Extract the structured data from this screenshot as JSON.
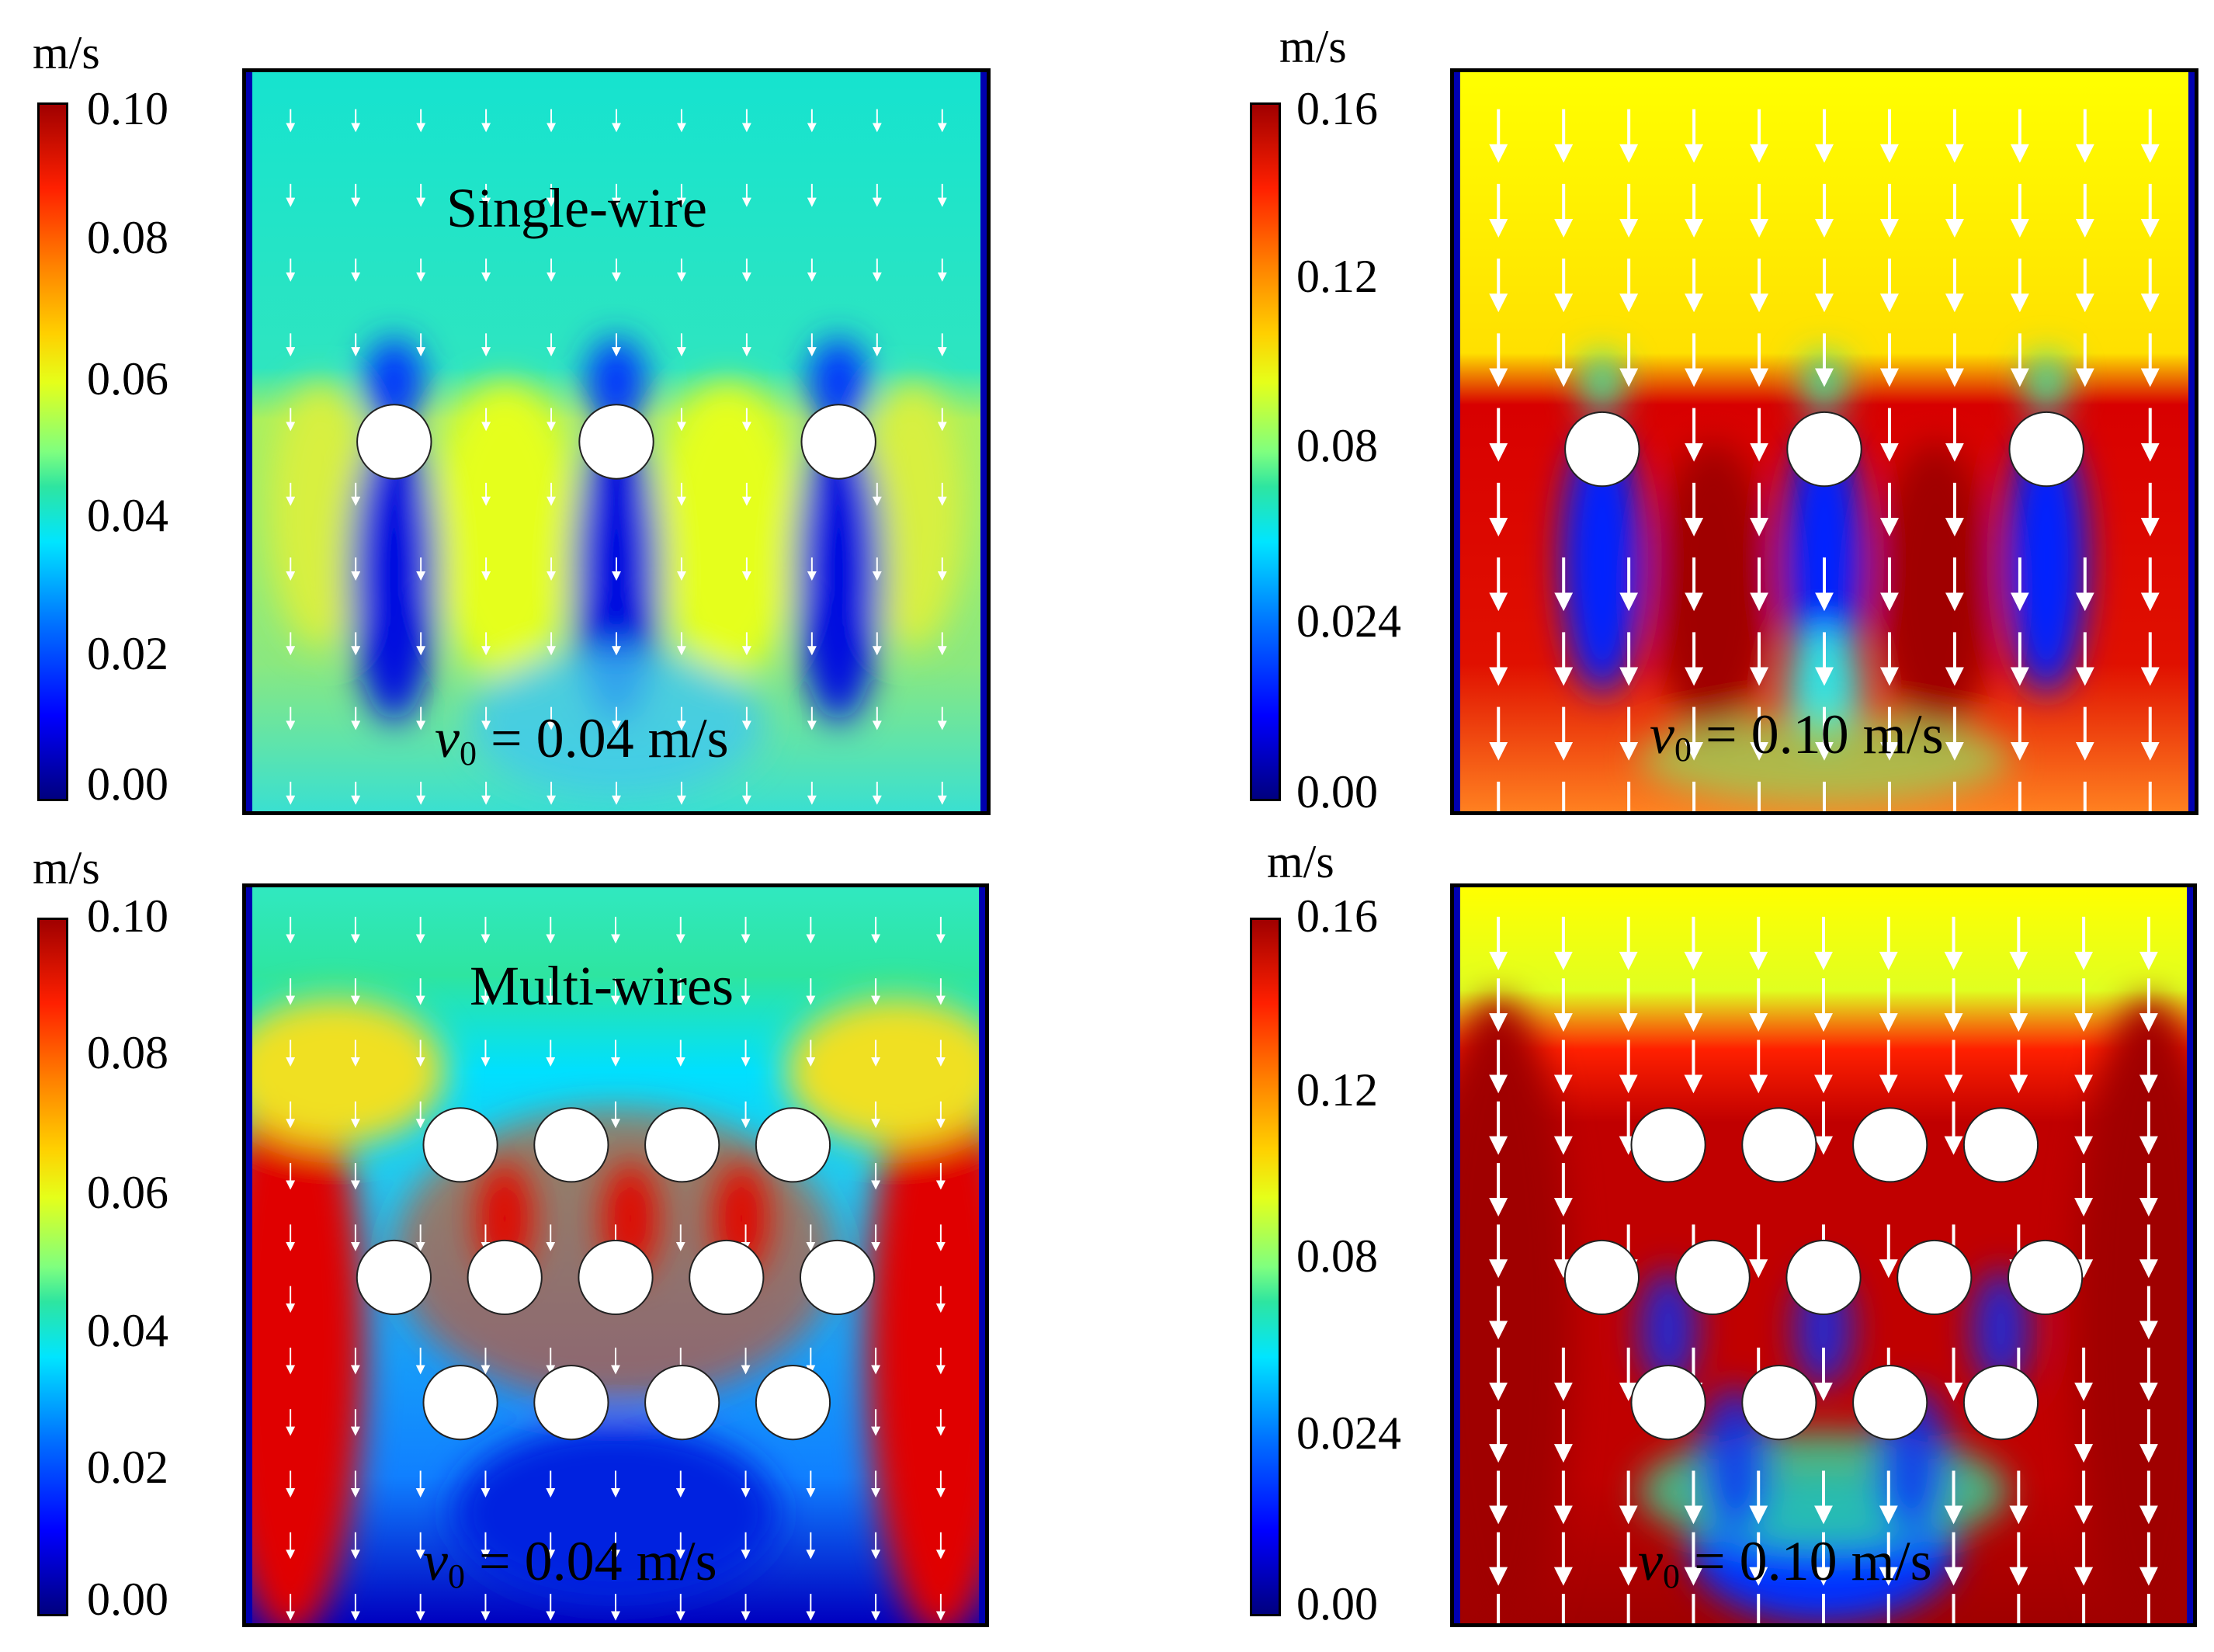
{
  "panels": [
    {
      "unit": "m/s",
      "ticks": [
        "0.10",
        "0.08",
        "0.06",
        "0.04",
        "0.02",
        "0.00"
      ],
      "title": "Single-wire",
      "velocity": {
        "symbol": "v",
        "subscript": "0",
        "value": "= 0.04 m/s"
      }
    },
    {
      "unit": "m/s",
      "ticks": [
        "0.16",
        "0.12",
        "0.08",
        "0.024",
        "0.00"
      ],
      "title": "",
      "velocity": {
        "symbol": "v",
        "subscript": "0",
        "value": "= 0.10 m/s"
      }
    },
    {
      "unit": "m/s",
      "ticks": [
        "0.10",
        "0.08",
        "0.06",
        "0.04",
        "0.02",
        "0.00"
      ],
      "title": "Multi-wires",
      "velocity": {
        "symbol": "v",
        "subscript": "0",
        "value": "= 0.04 m/s"
      }
    },
    {
      "unit": "m/s",
      "ticks": [
        "0.16",
        "0.12",
        "0.08",
        "0.024",
        "0.00"
      ],
      "title": "",
      "velocity": {
        "symbol": "v",
        "subscript": "0",
        "value": "= 0.10 m/s"
      }
    }
  ],
  "colors": {
    "low": "#00007f",
    "cyan": "#00e5ff",
    "green": "#2ee5a0",
    "yellow": "#e5ff1a",
    "red": "#d40000",
    "darkred": "#a00000"
  }
}
